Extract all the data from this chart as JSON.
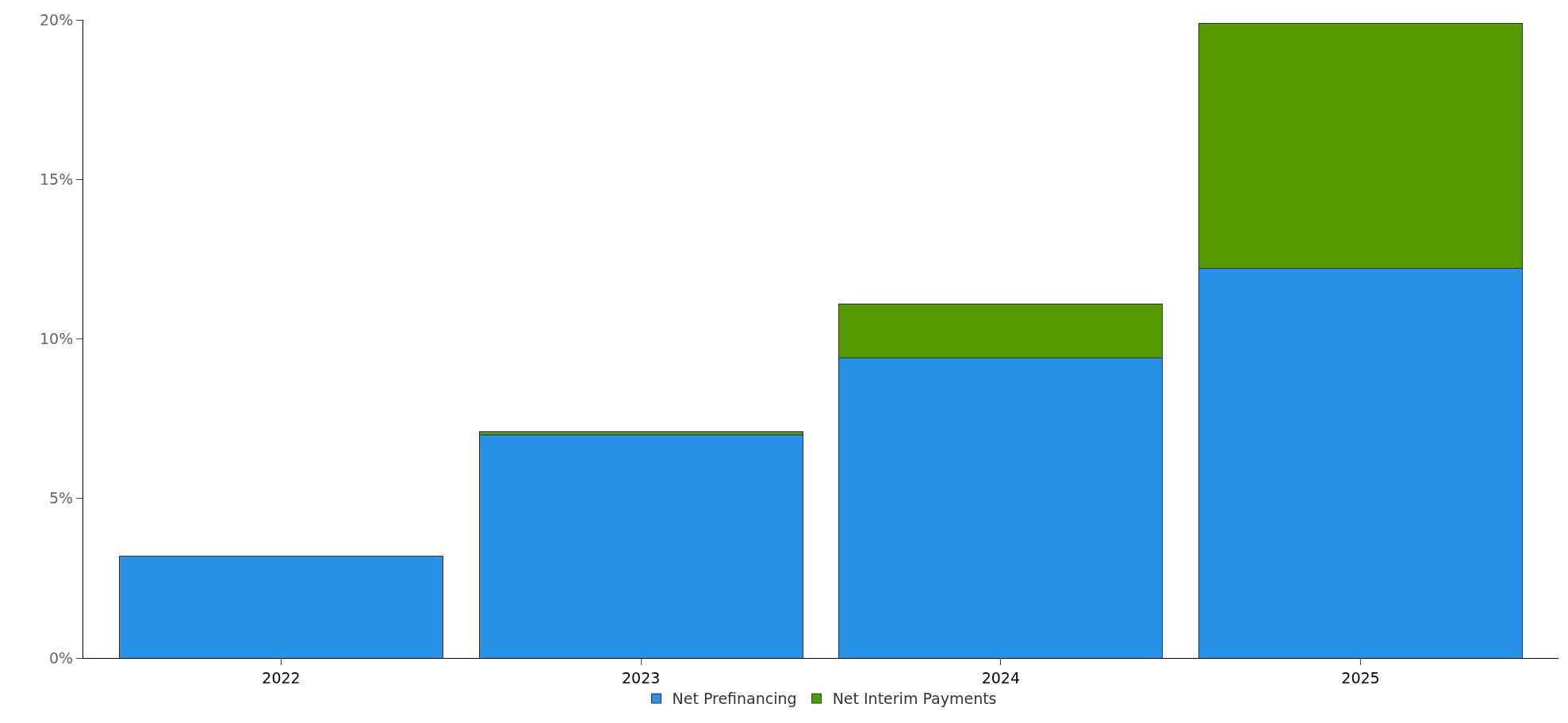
{
  "chart_data": {
    "type": "bar",
    "stacked": true,
    "categories": [
      "2022",
      "2023",
      "2024",
      "2025"
    ],
    "series": [
      {
        "name": "Net Prefinancing",
        "color": "#2892e6",
        "values": [
          3.2,
          7.0,
          9.4,
          12.2
        ]
      },
      {
        "name": "Net Interim Payments",
        "color": "#559a00",
        "values": [
          null,
          0.1,
          1.7,
          7.7
        ]
      }
    ],
    "ylim": [
      0,
      20
    ],
    "yticks": [
      {
        "value": 0,
        "label": "0%"
      },
      {
        "value": 5,
        "label": "5%"
      },
      {
        "value": 10,
        "label": "10%"
      },
      {
        "value": 15,
        "label": "15%"
      },
      {
        "value": 20,
        "label": "20%"
      }
    ],
    "grid": false,
    "legend": "bottom"
  }
}
